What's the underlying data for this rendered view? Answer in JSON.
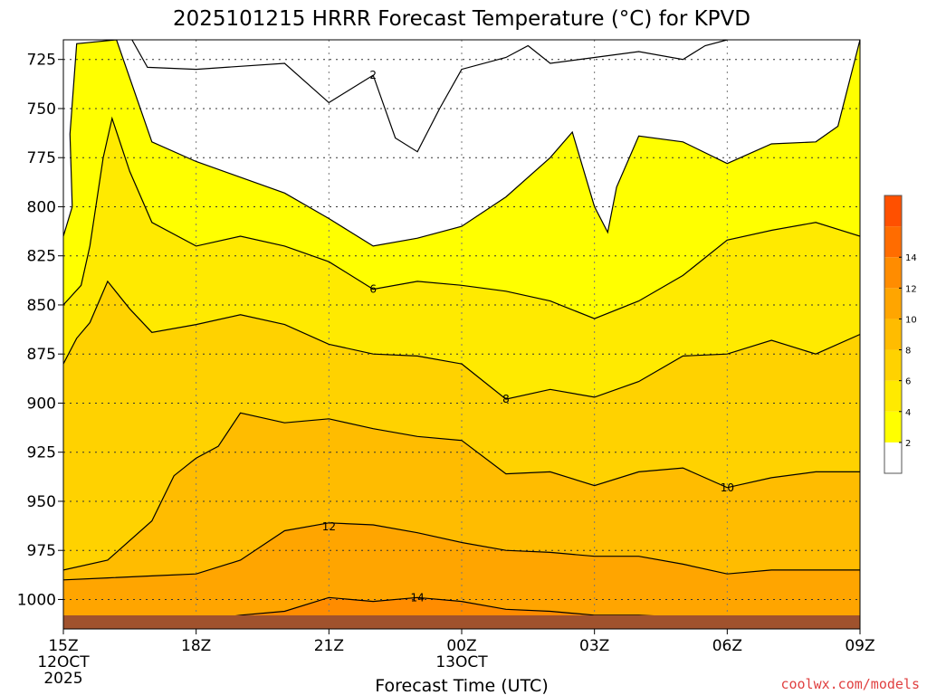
{
  "chart_data": {
    "type": "contour",
    "title": "2025101215 HRRR Forecast Temperature (°C) for KPVD",
    "xlabel": "Forecast Time (UTC)",
    "ylabel": "",
    "credit": "coolwx.com/models",
    "x_range_hours": [
      0,
      18
    ],
    "y_range_hpa": [
      715,
      1015
    ],
    "y_ticks": [
      725,
      750,
      775,
      800,
      825,
      850,
      875,
      900,
      925,
      950,
      975,
      1000
    ],
    "x_ticks": [
      {
        "hour": 0,
        "lines": [
          "15Z",
          "12OCT",
          "2025"
        ]
      },
      {
        "hour": 3,
        "lines": [
          "18Z"
        ]
      },
      {
        "hour": 6,
        "lines": [
          "21Z"
        ]
      },
      {
        "hour": 9,
        "lines": [
          "00Z",
          "13OCT"
        ]
      },
      {
        "hour": 12,
        "lines": [
          "03Z"
        ]
      },
      {
        "hour": 15,
        "lines": [
          "06Z"
        ]
      },
      {
        "hour": 18,
        "lines": [
          "09Z"
        ]
      }
    ],
    "grid": true,
    "colorbar": {
      "placement": "right",
      "levels": [
        0,
        2,
        4,
        6,
        8,
        10,
        12,
        14,
        16
      ],
      "tick_labels": [
        2,
        4,
        6,
        8,
        10,
        12,
        14
      ],
      "colors": [
        "#ffffff",
        "#ffff00",
        "#ffea00",
        "#ffd200",
        "#ffbc00",
        "#ffa500",
        "#ff8c00",
        "#ff6c00",
        "#ff5000"
      ]
    },
    "ground_color": "#a0522d",
    "contours": [
      {
        "level": 2,
        "label_at": {
          "hour": 7.0,
          "hpa": 733
        },
        "points": [
          [
            1.55,
            715
          ],
          [
            1.9,
            729
          ],
          [
            3.0,
            730
          ],
          [
            5.0,
            727
          ],
          [
            6.0,
            747
          ],
          [
            7.0,
            733
          ],
          [
            7.5,
            765
          ],
          [
            8.0,
            772
          ],
          [
            8.5,
            750
          ],
          [
            9.0,
            730
          ],
          [
            10.0,
            724
          ],
          [
            10.5,
            718
          ],
          [
            11.0,
            727
          ],
          [
            12.0,
            724
          ],
          [
            13.0,
            721
          ],
          [
            14.0,
            725
          ],
          [
            14.5,
            718
          ],
          [
            15.0,
            715
          ]
        ]
      },
      {
        "level": 4,
        "label_at": null,
        "points": [
          [
            0,
            815
          ],
          [
            0.2,
            800
          ],
          [
            0.15,
            763
          ],
          [
            0.3,
            717
          ],
          [
            1.2,
            715
          ],
          [
            2.0,
            767
          ],
          [
            3.0,
            777
          ],
          [
            5.0,
            793
          ],
          [
            6.0,
            806
          ],
          [
            7.0,
            820
          ],
          [
            8.0,
            816
          ],
          [
            9.0,
            810
          ],
          [
            10.0,
            795
          ],
          [
            11.0,
            775
          ],
          [
            11.5,
            762
          ],
          [
            12.0,
            800
          ],
          [
            12.3,
            813
          ],
          [
            12.5,
            790
          ],
          [
            13.0,
            764
          ],
          [
            14.0,
            767
          ],
          [
            15.0,
            778
          ],
          [
            16.0,
            768
          ],
          [
            17.0,
            767
          ],
          [
            17.5,
            759
          ],
          [
            18.0,
            715
          ]
        ]
      },
      {
        "level": 6,
        "label_at": {
          "hour": 7.0,
          "hpa": 842
        },
        "points": [
          [
            0,
            850
          ],
          [
            0.4,
            840
          ],
          [
            0.6,
            820
          ],
          [
            0.9,
            775
          ],
          [
            1.1,
            755
          ],
          [
            1.5,
            782
          ],
          [
            2.0,
            808
          ],
          [
            3.0,
            820
          ],
          [
            4.0,
            815
          ],
          [
            5.0,
            820
          ],
          [
            6.0,
            828
          ],
          [
            7.0,
            842
          ],
          [
            8.0,
            838
          ],
          [
            9.0,
            840
          ],
          [
            10.0,
            843
          ],
          [
            11.0,
            848
          ],
          [
            12.0,
            857
          ],
          [
            13.0,
            848
          ],
          [
            14.0,
            835
          ],
          [
            15.0,
            817
          ],
          [
            16.0,
            812
          ],
          [
            17.0,
            808
          ],
          [
            18.0,
            815
          ]
        ]
      },
      {
        "level": 8,
        "label_at": {
          "hour": 10.0,
          "hpa": 898
        },
        "points": [
          [
            0,
            880
          ],
          [
            0.3,
            867
          ],
          [
            0.6,
            859
          ],
          [
            1.0,
            838
          ],
          [
            1.5,
            852
          ],
          [
            2.0,
            864
          ],
          [
            3.0,
            860
          ],
          [
            4.0,
            855
          ],
          [
            5.0,
            860
          ],
          [
            6.0,
            870
          ],
          [
            7.0,
            875
          ],
          [
            8.0,
            876
          ],
          [
            9.0,
            880
          ],
          [
            10.0,
            898
          ],
          [
            11.0,
            893
          ],
          [
            12.0,
            897
          ],
          [
            13.0,
            889
          ],
          [
            14.0,
            876
          ],
          [
            15.0,
            875
          ],
          [
            16.0,
            868
          ],
          [
            17.0,
            875
          ],
          [
            18.0,
            865
          ]
        ]
      },
      {
        "level": 10,
        "label_at": {
          "hour": 15.0,
          "hpa": 943
        },
        "points": [
          [
            0,
            985
          ],
          [
            1.0,
            980
          ],
          [
            2.0,
            960
          ],
          [
            2.5,
            937
          ],
          [
            3.0,
            928
          ],
          [
            3.5,
            922
          ],
          [
            4.0,
            905
          ],
          [
            5.0,
            910
          ],
          [
            6.0,
            908
          ],
          [
            7.0,
            913
          ],
          [
            8.0,
            917
          ],
          [
            9.0,
            919
          ],
          [
            10.0,
            936
          ],
          [
            11.0,
            935
          ],
          [
            12.0,
            942
          ],
          [
            13.0,
            935
          ],
          [
            14.0,
            933
          ],
          [
            15.0,
            943
          ],
          [
            16.0,
            938
          ],
          [
            17.0,
            935
          ],
          [
            18.0,
            935
          ]
        ]
      },
      {
        "level": 12,
        "label_at": {
          "hour": 6.0,
          "hpa": 963
        },
        "points": [
          [
            0,
            990
          ],
          [
            1.0,
            989
          ],
          [
            2.0,
            988
          ],
          [
            3.0,
            987
          ],
          [
            4.0,
            980
          ],
          [
            5.0,
            965
          ],
          [
            6.0,
            961
          ],
          [
            7.0,
            962
          ],
          [
            8.0,
            966
          ],
          [
            9.0,
            971
          ],
          [
            10.0,
            975
          ],
          [
            11.0,
            976
          ],
          [
            12.0,
            978
          ],
          [
            13.0,
            978
          ],
          [
            14.0,
            982
          ],
          [
            15.0,
            987
          ],
          [
            16.0,
            985
          ],
          [
            17.0,
            985
          ],
          [
            18.0,
            985
          ]
        ]
      },
      {
        "level": 14,
        "label_at": {
          "hour": 8.0,
          "hpa": 999
        },
        "points": [
          [
            0,
            1012
          ],
          [
            1.0,
            1010
          ],
          [
            2.0,
            1010
          ],
          [
            3.0,
            1011
          ],
          [
            4.0,
            1008
          ],
          [
            5.0,
            1006
          ],
          [
            6.0,
            999
          ],
          [
            7.0,
            1001
          ],
          [
            8.0,
            999
          ],
          [
            9.0,
            1001
          ],
          [
            10.0,
            1005
          ],
          [
            11.0,
            1006
          ],
          [
            12.0,
            1008
          ],
          [
            13.0,
            1008
          ],
          [
            14.0,
            1009
          ],
          [
            15.0,
            1011
          ]
        ]
      }
    ]
  }
}
